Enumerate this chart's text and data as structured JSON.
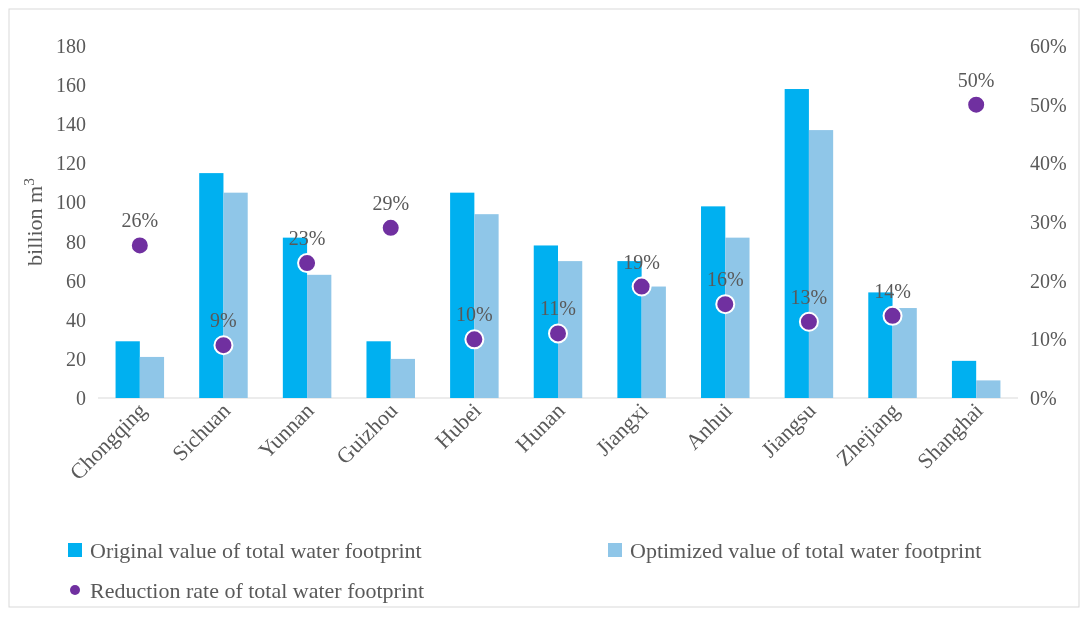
{
  "chart_data": {
    "type": "bar",
    "ylabel": "billion m$^{3}$",
    "categories": [
      "Chongqing",
      "Sichuan",
      "Yunnan",
      "Guizhou",
      "Hubei",
      "Hunan",
      "Jiangxi",
      "Anhui",
      "Jiangsu",
      "Zhejiang",
      "Shanghai"
    ],
    "series": [
      {
        "name": "Original value of total water footprint",
        "color": "#00b0f0",
        "values": [
          29,
          115,
          82,
          29,
          105,
          78,
          70,
          98,
          158,
          54,
          19
        ]
      },
      {
        "name": "Optimized value of total water footprint",
        "color": "#8fc6e8",
        "values": [
          21,
          105,
          63,
          20,
          94,
          70,
          57,
          82,
          137,
          46,
          9
        ]
      },
      {
        "name": "Reduction rate of total water footprint",
        "type": "scatter",
        "axis": "y2",
        "color": "#7030a0",
        "values": [
          26,
          9,
          23,
          29,
          10,
          11,
          19,
          16,
          13,
          14,
          50
        ],
        "value_labels": [
          "26%",
          "9%",
          "23%",
          "29%",
          "10%",
          "11%",
          "19%",
          "16%",
          "13%",
          "14%",
          "50%"
        ]
      }
    ],
    "ylim": [
      0,
      180
    ],
    "yticks": [
      0,
      20,
      40,
      60,
      80,
      100,
      120,
      140,
      160,
      180
    ],
    "y2lim": [
      0,
      60
    ],
    "y2ticks": [
      {
        "value": 0,
        "label": "0%"
      },
      {
        "value": 10,
        "label": "10%"
      },
      {
        "value": 20,
        "label": "20%"
      },
      {
        "value": 30,
        "label": "30%"
      },
      {
        "value": 40,
        "label": "40%"
      },
      {
        "value": 50,
        "label": "50%"
      },
      {
        "value": 60,
        "label": "60%"
      }
    ],
    "marker": "circle",
    "grid": false,
    "legend": "bottom"
  }
}
